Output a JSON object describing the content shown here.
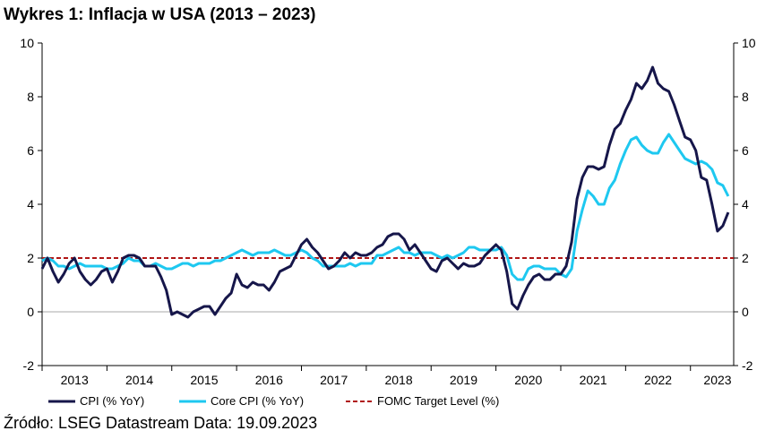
{
  "title": "Wykres 1: Inflacja w USA (2013 – 2023)",
  "source": "Źródło: LSEG Datastream Data: 19.09.2023",
  "colors": {
    "cpi": "#16164a",
    "core": "#1ec8f0",
    "target": "#b01515",
    "zero": "#a9a9a9"
  },
  "chart_data": {
    "type": "line",
    "title": "Wykres 1: Inflacja w USA (2013 – 2023)",
    "xlabel": "",
    "ylabel": "",
    "ylim": [
      -2,
      10
    ],
    "yticks": [
      -2,
      0,
      2,
      4,
      6,
      8,
      10
    ],
    "xticks": [
      "2013",
      "2014",
      "2015",
      "2016",
      "2017",
      "2018",
      "2019",
      "2020",
      "2021",
      "2022",
      "2023"
    ],
    "xrange": [
      2013.0,
      2023.667
    ],
    "grid": false,
    "legend_position": "bottom",
    "series": [
      {
        "name": "CPI (% YoY)",
        "points": [
          [
            2013.0,
            1.6
          ],
          [
            2013.083,
            2.0
          ],
          [
            2013.167,
            1.5
          ],
          [
            2013.25,
            1.1
          ],
          [
            2013.333,
            1.4
          ],
          [
            2013.417,
            1.8
          ],
          [
            2013.5,
            2.0
          ],
          [
            2013.583,
            1.5
          ],
          [
            2013.667,
            1.2
          ],
          [
            2013.75,
            1.0
          ],
          [
            2013.833,
            1.2
          ],
          [
            2013.917,
            1.5
          ],
          [
            2014.0,
            1.6
          ],
          [
            2014.083,
            1.1
          ],
          [
            2014.167,
            1.5
          ],
          [
            2014.25,
            2.0
          ],
          [
            2014.333,
            2.1
          ],
          [
            2014.417,
            2.1
          ],
          [
            2014.5,
            2.0
          ],
          [
            2014.583,
            1.7
          ],
          [
            2014.667,
            1.7
          ],
          [
            2014.75,
            1.7
          ],
          [
            2014.833,
            1.3
          ],
          [
            2014.917,
            0.8
          ],
          [
            2015.0,
            -0.1
          ],
          [
            2015.083,
            0.0
          ],
          [
            2015.167,
            -0.1
          ],
          [
            2015.25,
            -0.2
          ],
          [
            2015.333,
            0.0
          ],
          [
            2015.417,
            0.1
          ],
          [
            2015.5,
            0.2
          ],
          [
            2015.583,
            0.2
          ],
          [
            2015.667,
            -0.1
          ],
          [
            2015.75,
            0.2
          ],
          [
            2015.833,
            0.5
          ],
          [
            2015.917,
            0.7
          ],
          [
            2016.0,
            1.4
          ],
          [
            2016.083,
            1.0
          ],
          [
            2016.167,
            0.9
          ],
          [
            2016.25,
            1.1
          ],
          [
            2016.333,
            1.0
          ],
          [
            2016.417,
            1.0
          ],
          [
            2016.5,
            0.8
          ],
          [
            2016.583,
            1.1
          ],
          [
            2016.667,
            1.5
          ],
          [
            2016.75,
            1.6
          ],
          [
            2016.833,
            1.7
          ],
          [
            2016.917,
            2.1
          ],
          [
            2017.0,
            2.5
          ],
          [
            2017.083,
            2.7
          ],
          [
            2017.167,
            2.4
          ],
          [
            2017.25,
            2.2
          ],
          [
            2017.333,
            1.9
          ],
          [
            2017.417,
            1.6
          ],
          [
            2017.5,
            1.7
          ],
          [
            2017.583,
            1.9
          ],
          [
            2017.667,
            2.2
          ],
          [
            2017.75,
            2.0
          ],
          [
            2017.833,
            2.2
          ],
          [
            2017.917,
            2.1
          ],
          [
            2018.0,
            2.1
          ],
          [
            2018.083,
            2.2
          ],
          [
            2018.167,
            2.4
          ],
          [
            2018.25,
            2.5
          ],
          [
            2018.333,
            2.8
          ],
          [
            2018.417,
            2.9
          ],
          [
            2018.5,
            2.9
          ],
          [
            2018.583,
            2.7
          ],
          [
            2018.667,
            2.3
          ],
          [
            2018.75,
            2.5
          ],
          [
            2018.833,
            2.2
          ],
          [
            2018.917,
            1.9
          ],
          [
            2019.0,
            1.6
          ],
          [
            2019.083,
            1.5
          ],
          [
            2019.167,
            1.9
          ],
          [
            2019.25,
            2.0
          ],
          [
            2019.333,
            1.8
          ],
          [
            2019.417,
            1.6
          ],
          [
            2019.5,
            1.8
          ],
          [
            2019.583,
            1.7
          ],
          [
            2019.667,
            1.7
          ],
          [
            2019.75,
            1.8
          ],
          [
            2019.833,
            2.1
          ],
          [
            2019.917,
            2.3
          ],
          [
            2020.0,
            2.5
          ],
          [
            2020.083,
            2.3
          ],
          [
            2020.167,
            1.5
          ],
          [
            2020.25,
            0.3
          ],
          [
            2020.333,
            0.1
          ],
          [
            2020.417,
            0.6
          ],
          [
            2020.5,
            1.0
          ],
          [
            2020.583,
            1.3
          ],
          [
            2020.667,
            1.4
          ],
          [
            2020.75,
            1.2
          ],
          [
            2020.833,
            1.2
          ],
          [
            2020.917,
            1.4
          ],
          [
            2021.0,
            1.4
          ],
          [
            2021.083,
            1.7
          ],
          [
            2021.167,
            2.6
          ],
          [
            2021.25,
            4.2
          ],
          [
            2021.333,
            5.0
          ],
          [
            2021.417,
            5.4
          ],
          [
            2021.5,
            5.4
          ],
          [
            2021.583,
            5.3
          ],
          [
            2021.667,
            5.4
          ],
          [
            2021.75,
            6.2
          ],
          [
            2021.833,
            6.8
          ],
          [
            2021.917,
            7.0
          ],
          [
            2022.0,
            7.5
          ],
          [
            2022.083,
            7.9
          ],
          [
            2022.167,
            8.5
          ],
          [
            2022.25,
            8.3
          ],
          [
            2022.333,
            8.6
          ],
          [
            2022.417,
            9.1
          ],
          [
            2022.5,
            8.5
          ],
          [
            2022.583,
            8.3
          ],
          [
            2022.667,
            8.2
          ],
          [
            2022.75,
            7.7
          ],
          [
            2022.833,
            7.1
          ],
          [
            2022.917,
            6.5
          ],
          [
            2023.0,
            6.4
          ],
          [
            2023.083,
            6.0
          ],
          [
            2023.167,
            5.0
          ],
          [
            2023.25,
            4.9
          ],
          [
            2023.333,
            4.0
          ],
          [
            2023.417,
            3.0
          ],
          [
            2023.5,
            3.2
          ],
          [
            2023.583,
            3.7
          ]
        ]
      },
      {
        "name": "Core CPI (% YoY)",
        "points": [
          [
            2013.0,
            1.9
          ],
          [
            2013.083,
            2.0
          ],
          [
            2013.167,
            1.9
          ],
          [
            2013.25,
            1.7
          ],
          [
            2013.333,
            1.7
          ],
          [
            2013.417,
            1.6
          ],
          [
            2013.5,
            1.7
          ],
          [
            2013.583,
            1.8
          ],
          [
            2013.667,
            1.7
          ],
          [
            2013.75,
            1.7
          ],
          [
            2013.833,
            1.7
          ],
          [
            2013.917,
            1.7
          ],
          [
            2014.0,
            1.6
          ],
          [
            2014.083,
            1.6
          ],
          [
            2014.167,
            1.7
          ],
          [
            2014.25,
            1.8
          ],
          [
            2014.333,
            2.0
          ],
          [
            2014.417,
            1.9
          ],
          [
            2014.5,
            1.9
          ],
          [
            2014.583,
            1.7
          ],
          [
            2014.667,
            1.7
          ],
          [
            2014.75,
            1.8
          ],
          [
            2014.833,
            1.7
          ],
          [
            2014.917,
            1.6
          ],
          [
            2015.0,
            1.6
          ],
          [
            2015.083,
            1.7
          ],
          [
            2015.167,
            1.8
          ],
          [
            2015.25,
            1.8
          ],
          [
            2015.333,
            1.7
          ],
          [
            2015.417,
            1.8
          ],
          [
            2015.5,
            1.8
          ],
          [
            2015.583,
            1.8
          ],
          [
            2015.667,
            1.9
          ],
          [
            2015.75,
            1.9
          ],
          [
            2015.833,
            2.0
          ],
          [
            2015.917,
            2.1
          ],
          [
            2016.0,
            2.2
          ],
          [
            2016.083,
            2.3
          ],
          [
            2016.167,
            2.2
          ],
          [
            2016.25,
            2.1
          ],
          [
            2016.333,
            2.2
          ],
          [
            2016.417,
            2.2
          ],
          [
            2016.5,
            2.2
          ],
          [
            2016.583,
            2.3
          ],
          [
            2016.667,
            2.2
          ],
          [
            2016.75,
            2.1
          ],
          [
            2016.833,
            2.1
          ],
          [
            2016.917,
            2.2
          ],
          [
            2017.0,
            2.3
          ],
          [
            2017.083,
            2.2
          ],
          [
            2017.167,
            2.0
          ],
          [
            2017.25,
            1.9
          ],
          [
            2017.333,
            1.7
          ],
          [
            2017.417,
            1.7
          ],
          [
            2017.5,
            1.7
          ],
          [
            2017.583,
            1.7
          ],
          [
            2017.667,
            1.7
          ],
          [
            2017.75,
            1.8
          ],
          [
            2017.833,
            1.7
          ],
          [
            2017.917,
            1.8
          ],
          [
            2018.0,
            1.8
          ],
          [
            2018.083,
            1.8
          ],
          [
            2018.167,
            2.1
          ],
          [
            2018.25,
            2.1
          ],
          [
            2018.333,
            2.2
          ],
          [
            2018.417,
            2.3
          ],
          [
            2018.5,
            2.4
          ],
          [
            2018.583,
            2.2
          ],
          [
            2018.667,
            2.2
          ],
          [
            2018.75,
            2.1
          ],
          [
            2018.833,
            2.2
          ],
          [
            2018.917,
            2.2
          ],
          [
            2019.0,
            2.2
          ],
          [
            2019.083,
            2.1
          ],
          [
            2019.167,
            2.0
          ],
          [
            2019.25,
            2.1
          ],
          [
            2019.333,
            2.0
          ],
          [
            2019.417,
            2.1
          ],
          [
            2019.5,
            2.2
          ],
          [
            2019.583,
            2.4
          ],
          [
            2019.667,
            2.4
          ],
          [
            2019.75,
            2.3
          ],
          [
            2019.833,
            2.3
          ],
          [
            2019.917,
            2.3
          ],
          [
            2020.0,
            2.3
          ],
          [
            2020.083,
            2.4
          ],
          [
            2020.167,
            2.1
          ],
          [
            2020.25,
            1.4
          ],
          [
            2020.333,
            1.2
          ],
          [
            2020.417,
            1.2
          ],
          [
            2020.5,
            1.6
          ],
          [
            2020.583,
            1.7
          ],
          [
            2020.667,
            1.7
          ],
          [
            2020.75,
            1.6
          ],
          [
            2020.833,
            1.6
          ],
          [
            2020.917,
            1.6
          ],
          [
            2021.0,
            1.4
          ],
          [
            2021.083,
            1.3
          ],
          [
            2021.167,
            1.6
          ],
          [
            2021.25,
            3.0
          ],
          [
            2021.333,
            3.8
          ],
          [
            2021.417,
            4.5
          ],
          [
            2021.5,
            4.3
          ],
          [
            2021.583,
            4.0
          ],
          [
            2021.667,
            4.0
          ],
          [
            2021.75,
            4.6
          ],
          [
            2021.833,
            4.9
          ],
          [
            2021.917,
            5.5
          ],
          [
            2022.0,
            6.0
          ],
          [
            2022.083,
            6.4
          ],
          [
            2022.167,
            6.5
          ],
          [
            2022.25,
            6.2
          ],
          [
            2022.333,
            6.0
          ],
          [
            2022.417,
            5.9
          ],
          [
            2022.5,
            5.9
          ],
          [
            2022.583,
            6.3
          ],
          [
            2022.667,
            6.6
          ],
          [
            2022.75,
            6.3
          ],
          [
            2022.833,
            6.0
          ],
          [
            2022.917,
            5.7
          ],
          [
            2023.0,
            5.6
          ],
          [
            2023.083,
            5.5
          ],
          [
            2023.167,
            5.6
          ],
          [
            2023.25,
            5.5
          ],
          [
            2023.333,
            5.3
          ],
          [
            2023.417,
            4.8
          ],
          [
            2023.5,
            4.7
          ],
          [
            2023.583,
            4.3
          ]
        ]
      },
      {
        "name": "FOMC Target Level (%)",
        "points": [
          [
            2013.0,
            2.0
          ],
          [
            2023.667,
            2.0
          ]
        ]
      }
    ]
  },
  "legend": [
    {
      "label": "CPI (% YoY)"
    },
    {
      "label": "Core CPI (% YoY)"
    },
    {
      "label": "FOMC Target Level (%)"
    }
  ]
}
